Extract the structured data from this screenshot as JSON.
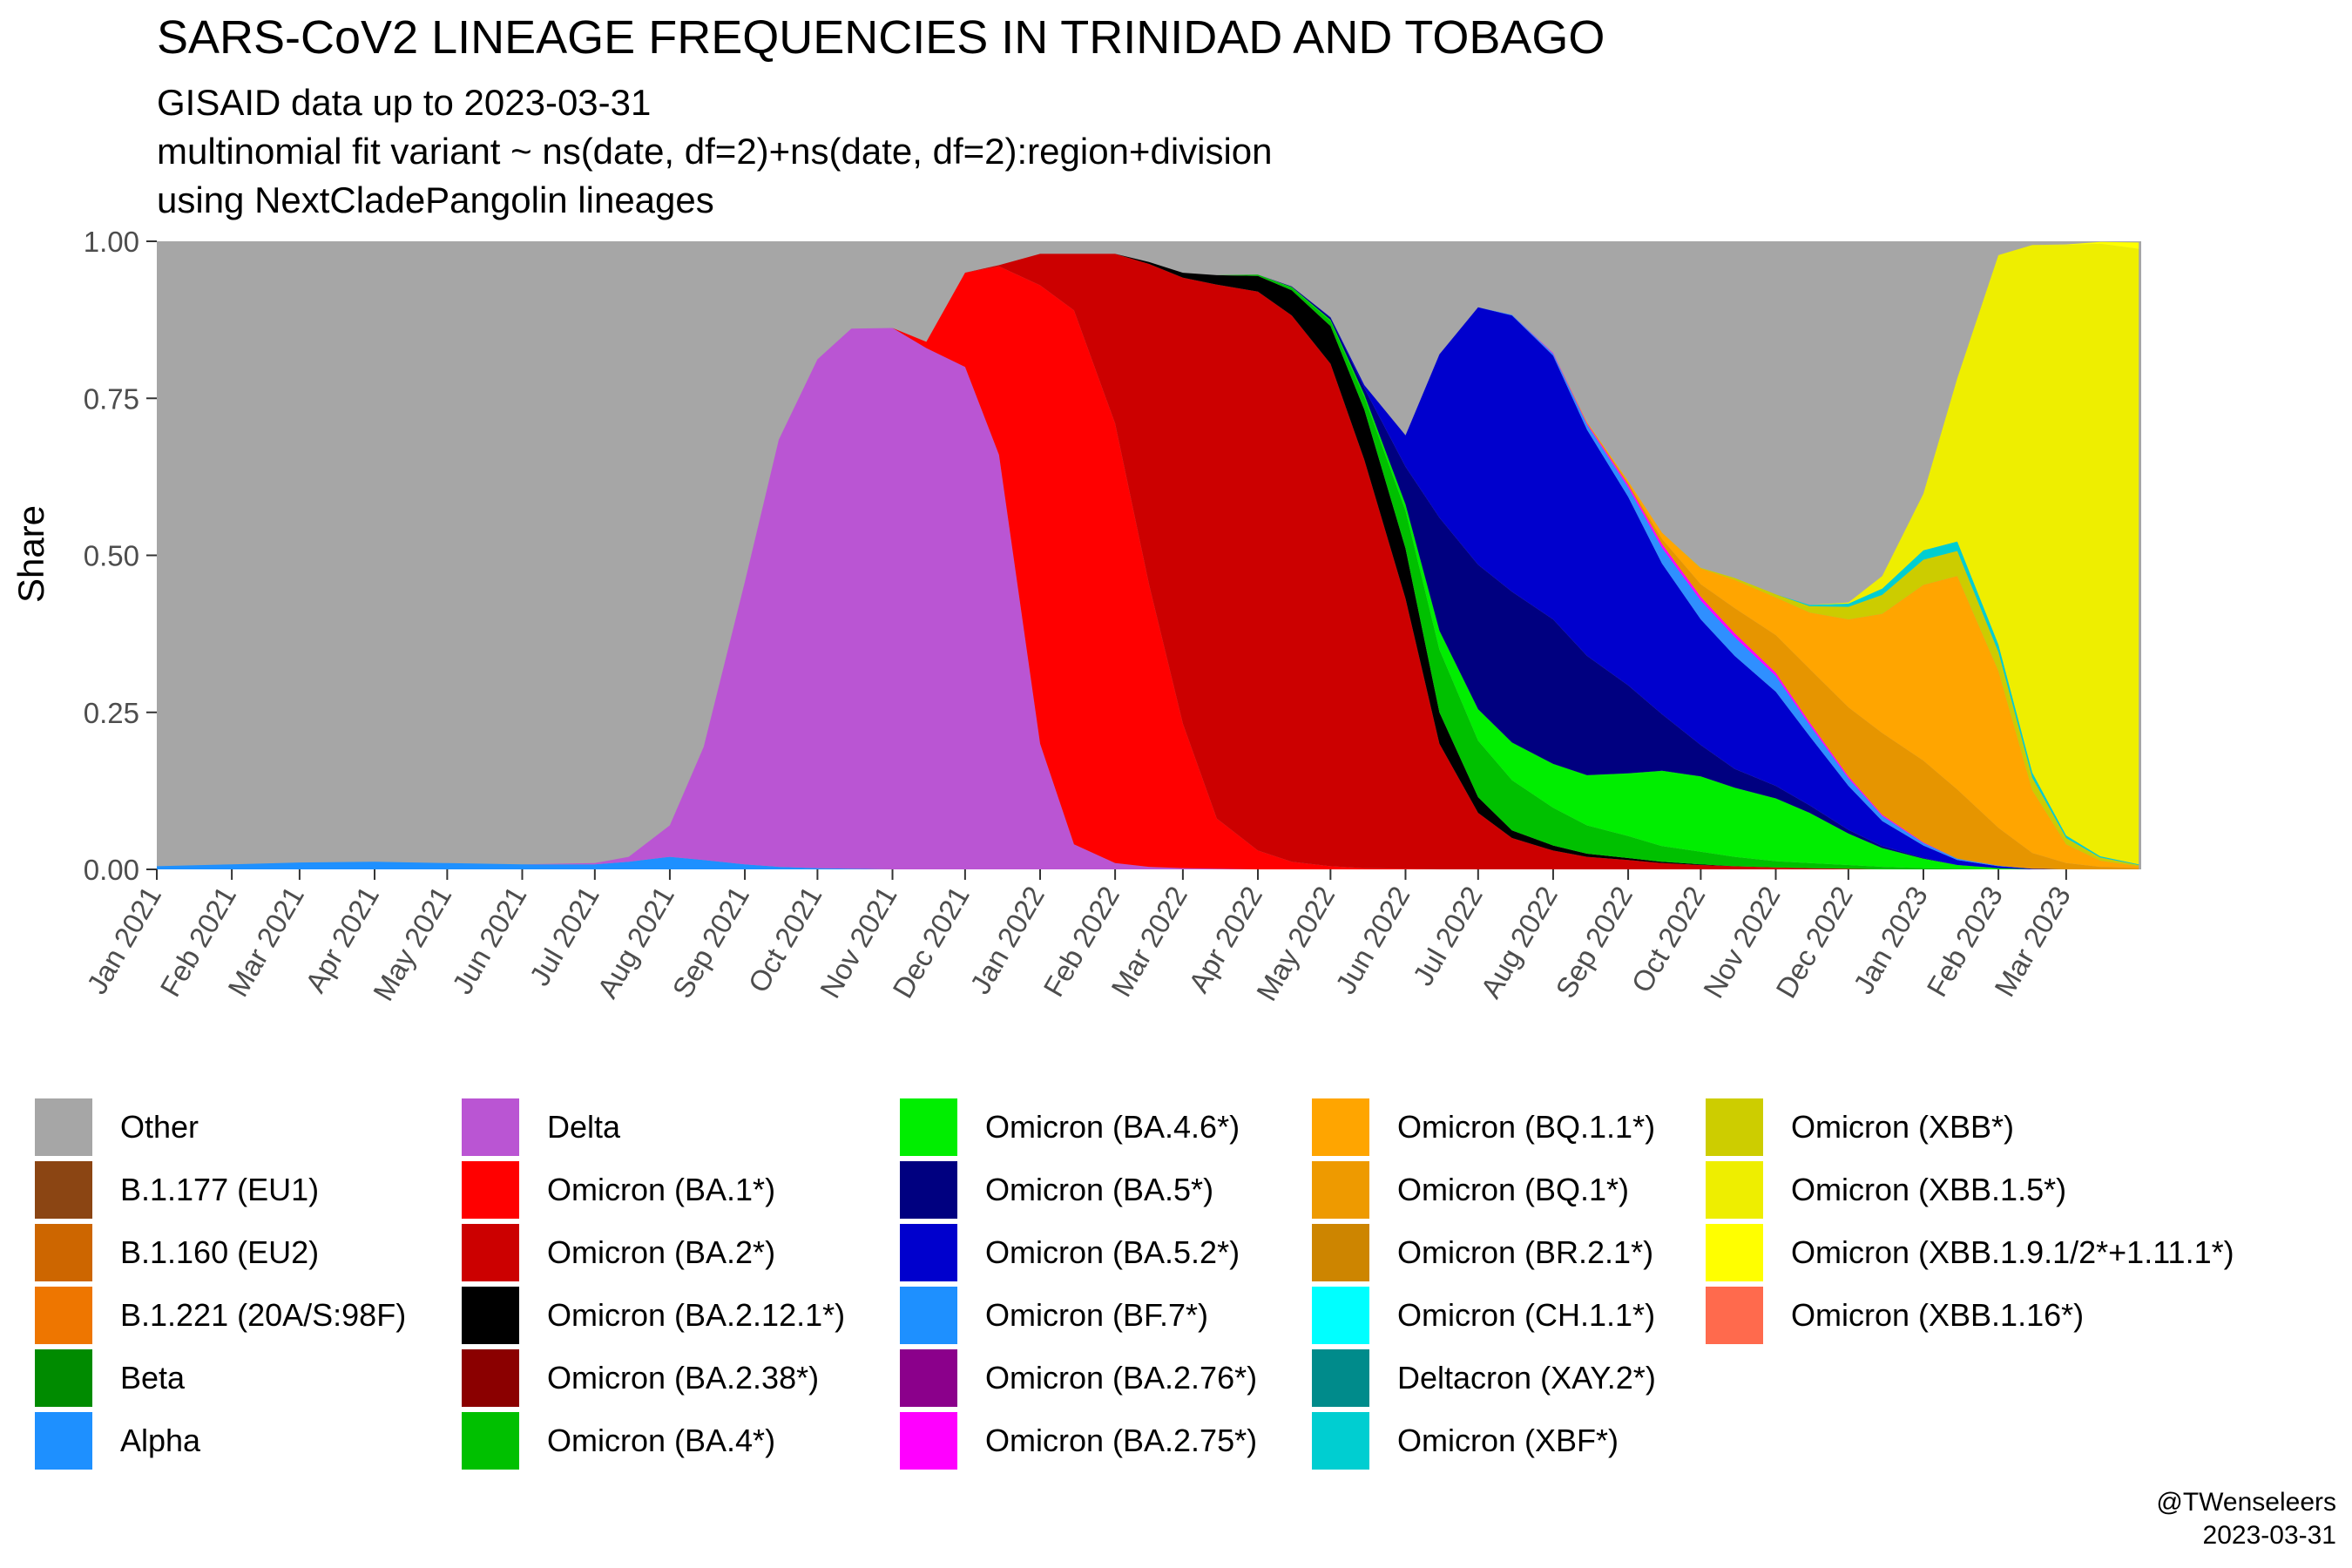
{
  "title": "SARS-CoV2 LINEAGE FREQUENCIES IN TRINIDAD AND TOBAGO",
  "subtitle_lines": [
    "GISAID data up to 2023-03-31",
    "multinomial fit variant ~ ns(date, df=2)+ns(date, df=2):region+division",
    "using NextCladePangolin lineages"
  ],
  "credit": {
    "author": "@TWenseleers",
    "date": "2023-03-31"
  },
  "chart_data": {
    "type": "area",
    "stacked": true,
    "title": "SARS-CoV2 LINEAGE FREQUENCIES IN TRINIDAD AND TOBAGO",
    "xlabel": "",
    "ylabel": "Share",
    "xlim": [
      "2021-01-01",
      "2023-04-01"
    ],
    "ylim": [
      0,
      1
    ],
    "y_ticks": [
      "0.00",
      "0.25",
      "0.50",
      "0.75",
      "1.00"
    ],
    "x_ticks": [
      "Jan 2021",
      "Feb 2021",
      "Mar 2021",
      "Apr 2021",
      "May 2021",
      "Jun 2021",
      "Jul 2021",
      "Aug 2021",
      "Sep 2021",
      "Oct 2021",
      "Nov 2021",
      "Dec 2021",
      "Jan 2022",
      "Feb 2022",
      "Mar 2022",
      "Apr 2022",
      "May 2022",
      "Jun 2022",
      "Jul 2022",
      "Aug 2022",
      "Sep 2022",
      "Oct 2022",
      "Nov 2022",
      "Dec 2022",
      "Jan 2023",
      "Feb 2023",
      "Mar 2023"
    ],
    "x_tick_dates": [
      "2021-01-01",
      "2021-02-01",
      "2021-03-01",
      "2021-04-01",
      "2021-05-01",
      "2021-06-01",
      "2021-07-01",
      "2021-08-01",
      "2021-09-01",
      "2021-10-01",
      "2021-11-01",
      "2021-12-01",
      "2022-01-01",
      "2022-02-01",
      "2022-03-01",
      "2022-04-01",
      "2022-05-01",
      "2022-06-01",
      "2022-07-01",
      "2022-08-01",
      "2022-09-01",
      "2022-10-01",
      "2022-11-01",
      "2022-12-01",
      "2023-01-01",
      "2023-02-01",
      "2023-03-01"
    ],
    "grid": false,
    "legend_position": "bottom",
    "x": [
      "2021-01-01",
      "2021-02-01",
      "2021-03-01",
      "2021-04-01",
      "2021-05-01",
      "2021-06-01",
      "2021-07-01",
      "2021-07-15",
      "2021-08-01",
      "2021-08-15",
      "2021-09-01",
      "2021-09-15",
      "2021-10-01",
      "2021-10-15",
      "2021-11-01",
      "2021-11-15",
      "2021-12-01",
      "2021-12-15",
      "2022-01-01",
      "2022-01-15",
      "2022-02-01",
      "2022-02-15",
      "2022-03-01",
      "2022-03-15",
      "2022-04-01",
      "2022-04-15",
      "2022-05-01",
      "2022-05-15",
      "2022-06-01",
      "2022-06-15",
      "2022-07-01",
      "2022-07-15",
      "2022-08-01",
      "2022-08-15",
      "2022-09-01",
      "2022-09-15",
      "2022-10-01",
      "2022-10-15",
      "2022-11-01",
      "2022-11-15",
      "2022-12-01",
      "2022-12-15",
      "2023-01-01",
      "2023-01-15",
      "2023-02-01",
      "2023-02-15",
      "2023-03-01",
      "2023-03-15",
      "2023-03-31"
    ],
    "series": [
      {
        "name": "Alpha",
        "color": "#1E90FF",
        "values": [
          0.005,
          0.008,
          0.011,
          0.012,
          0.01,
          0.008,
          0.008,
          0.012,
          0.02,
          0.015,
          0.008,
          0.004,
          0.002,
          0.001,
          0,
          0,
          0,
          0,
          0,
          0,
          0,
          0,
          0,
          0,
          0,
          0,
          0,
          0,
          0,
          0,
          0,
          0,
          0,
          0,
          0,
          0,
          0,
          0,
          0,
          0,
          0,
          0,
          0,
          0,
          0,
          0,
          0,
          0,
          0
        ]
      },
      {
        "name": "Delta",
        "color": "#BA55D3",
        "values": [
          0,
          0,
          0,
          0,
          0,
          0,
          0.002,
          0.008,
          0.05,
          0.18,
          0.45,
          0.68,
          0.81,
          0.86,
          0.862,
          0.83,
          0.8,
          0.66,
          0.2,
          0.04,
          0.01,
          0.004,
          0.002,
          0.001,
          0,
          0,
          0,
          0,
          0,
          0,
          0,
          0,
          0,
          0,
          0,
          0,
          0,
          0,
          0,
          0,
          0,
          0,
          0,
          0,
          0,
          0,
          0,
          0,
          0
        ]
      },
      {
        "name": "Omicron (BA.1*)",
        "color": "#FF0000",
        "values": [
          0,
          0,
          0,
          0,
          0,
          0,
          0,
          0,
          0,
          0,
          0,
          0,
          0,
          0,
          0,
          0.01,
          0.15,
          0.3,
          0.73,
          0.85,
          0.7,
          0.45,
          0.23,
          0.08,
          0.03,
          0.012,
          0.005,
          0.002,
          0.001,
          0,
          0,
          0,
          0,
          0,
          0,
          0,
          0,
          0,
          0,
          0,
          0,
          0,
          0,
          0,
          0,
          0,
          0,
          0,
          0
        ]
      },
      {
        "name": "Omicron (BA.2*)",
        "color": "#CC0000",
        "values": [
          0,
          0,
          0,
          0,
          0,
          0,
          0,
          0,
          0,
          0,
          0,
          0,
          0,
          0,
          0,
          0,
          0,
          0.002,
          0.05,
          0.09,
          0.27,
          0.51,
          0.71,
          0.85,
          0.89,
          0.87,
          0.8,
          0.65,
          0.43,
          0.2,
          0.09,
          0.05,
          0.03,
          0.02,
          0.015,
          0.01,
          0.007,
          0.005,
          0.003,
          0.002,
          0.001,
          0,
          0,
          0,
          0,
          0,
          0,
          0,
          0
        ]
      },
      {
        "name": "Omicron (BA.2.12.1*)",
        "color": "#000000",
        "values": [
          0,
          0,
          0,
          0,
          0,
          0,
          0,
          0,
          0,
          0,
          0,
          0,
          0,
          0,
          0,
          0,
          0,
          0,
          0,
          0,
          0,
          0.003,
          0.008,
          0.015,
          0.025,
          0.04,
          0.06,
          0.08,
          0.08,
          0.05,
          0.025,
          0.012,
          0.008,
          0.005,
          0.003,
          0.002,
          0.001,
          0,
          0,
          0,
          0,
          0,
          0,
          0,
          0,
          0,
          0,
          0,
          0
        ]
      },
      {
        "name": "Omicron (BA.4*)",
        "color": "#00C000",
        "values": [
          0,
          0,
          0,
          0,
          0,
          0,
          0,
          0,
          0,
          0,
          0,
          0,
          0,
          0,
          0,
          0,
          0,
          0,
          0,
          0,
          0,
          0,
          0,
          0,
          0.002,
          0.004,
          0.008,
          0.02,
          0.06,
          0.1,
          0.09,
          0.08,
          0.06,
          0.045,
          0.035,
          0.025,
          0.02,
          0.015,
          0.01,
          0.008,
          0.006,
          0.004,
          0.002,
          0.001,
          0,
          0,
          0,
          0,
          0
        ]
      },
      {
        "name": "Omicron (BA.4.6*)",
        "color": "#00EE00",
        "values": [
          0,
          0,
          0,
          0,
          0,
          0,
          0,
          0,
          0,
          0,
          0,
          0,
          0,
          0,
          0,
          0,
          0,
          0,
          0,
          0,
          0,
          0,
          0,
          0,
          0,
          0.001,
          0.002,
          0.004,
          0.01,
          0.03,
          0.05,
          0.06,
          0.07,
          0.08,
          0.1,
          0.12,
          0.12,
          0.11,
          0.1,
          0.08,
          0.05,
          0.03,
          0.015,
          0.006,
          0.002,
          0,
          0,
          0,
          0
        ]
      },
      {
        "name": "Omicron (BA.5*)",
        "color": "#000080",
        "values": [
          0,
          0,
          0,
          0,
          0,
          0,
          0,
          0,
          0,
          0,
          0,
          0,
          0,
          0,
          0,
          0,
          0,
          0,
          0,
          0,
          0,
          0,
          0,
          0,
          0,
          0.001,
          0.003,
          0.01,
          0.06,
          0.18,
          0.23,
          0.24,
          0.23,
          0.19,
          0.14,
          0.09,
          0.05,
          0.03,
          0.02,
          0.012,
          0.006,
          0.003,
          0.001,
          0,
          0,
          0,
          0,
          0,
          0
        ]
      },
      {
        "name": "Omicron (BA.5.2*)",
        "color": "#0000CD",
        "values": [
          0,
          0,
          0,
          0,
          0,
          0,
          0,
          0,
          0,
          0,
          0,
          0,
          0,
          0,
          0,
          0,
          0,
          0,
          0,
          0,
          0,
          0,
          0,
          0,
          0,
          0,
          0.001,
          0.005,
          0.05,
          0.26,
          0.41,
          0.44,
          0.42,
          0.36,
          0.3,
          0.24,
          0.2,
          0.18,
          0.15,
          0.11,
          0.07,
          0.04,
          0.02,
          0.008,
          0.003,
          0.001,
          0,
          0,
          0
        ]
      },
      {
        "name": "Omicron (BF.7*)",
        "color": "#2F8FFF",
        "values": [
          0,
          0,
          0,
          0,
          0,
          0,
          0,
          0,
          0,
          0,
          0,
          0,
          0,
          0,
          0,
          0,
          0,
          0,
          0,
          0,
          0,
          0,
          0,
          0,
          0,
          0,
          0,
          0,
          0,
          0,
          0,
          0.001,
          0.003,
          0.008,
          0.015,
          0.025,
          0.03,
          0.03,
          0.025,
          0.018,
          0.012,
          0.008,
          0.004,
          0.002,
          0.001,
          0,
          0,
          0,
          0
        ]
      },
      {
        "name": "Omicron (BA.2.75*)",
        "color": "#FF00FF",
        "values": [
          0,
          0,
          0,
          0,
          0,
          0,
          0,
          0,
          0,
          0,
          0,
          0,
          0,
          0,
          0,
          0,
          0,
          0,
          0,
          0,
          0,
          0,
          0,
          0,
          0,
          0,
          0,
          0,
          0,
          0,
          0,
          0,
          0.001,
          0.002,
          0.004,
          0.006,
          0.006,
          0.006,
          0.005,
          0.004,
          0.003,
          0.002,
          0.001,
          0,
          0,
          0,
          0,
          0,
          0
        ]
      },
      {
        "name": "Omicron (BQ.1*)",
        "color": "#E69500",
        "values": [
          0,
          0,
          0,
          0,
          0,
          0,
          0,
          0,
          0,
          0,
          0,
          0,
          0,
          0,
          0,
          0,
          0,
          0,
          0,
          0,
          0,
          0,
          0,
          0,
          0,
          0,
          0,
          0,
          0,
          0,
          0,
          0,
          0,
          0.001,
          0.003,
          0.008,
          0.02,
          0.04,
          0.06,
          0.085,
          0.11,
          0.13,
          0.13,
          0.11,
          0.06,
          0.025,
          0.01,
          0.004,
          0.002
        ]
      },
      {
        "name": "Omicron (BQ.1.1*)",
        "color": "#FFA500",
        "values": [
          0,
          0,
          0,
          0,
          0,
          0,
          0,
          0,
          0,
          0,
          0,
          0,
          0,
          0,
          0,
          0,
          0,
          0,
          0,
          0,
          0,
          0,
          0,
          0,
          0,
          0,
          0,
          0,
          0,
          0,
          0,
          0,
          0,
          0.001,
          0.003,
          0.01,
          0.025,
          0.045,
          0.06,
          0.09,
          0.14,
          0.19,
          0.28,
          0.34,
          0.25,
          0.1,
          0.03,
          0.01,
          0.003
        ]
      },
      {
        "name": "Omicron (XBB*)",
        "color": "#CCCC00",
        "values": [
          0,
          0,
          0,
          0,
          0,
          0,
          0,
          0,
          0,
          0,
          0,
          0,
          0,
          0,
          0,
          0,
          0,
          0,
          0,
          0,
          0,
          0,
          0,
          0,
          0,
          0,
          0,
          0,
          0,
          0,
          0,
          0,
          0,
          0,
          0,
          0,
          0.001,
          0.003,
          0.005,
          0.01,
          0.02,
          0.03,
          0.04,
          0.04,
          0.03,
          0.02,
          0.01,
          0.005,
          0.002
        ]
      },
      {
        "name": "Omicron (XBF*)",
        "color": "#00CED1",
        "values": [
          0,
          0,
          0,
          0,
          0,
          0,
          0,
          0,
          0,
          0,
          0,
          0,
          0,
          0,
          0,
          0,
          0,
          0,
          0,
          0,
          0,
          0,
          0,
          0,
          0,
          0,
          0,
          0,
          0,
          0,
          0,
          0,
          0,
          0,
          0,
          0,
          0,
          0,
          0,
          0.002,
          0.005,
          0.01,
          0.015,
          0.015,
          0.012,
          0.008,
          0.004,
          0.002,
          0.001
        ]
      },
      {
        "name": "Omicron (XBB.1.5*)",
        "color": "#EEEE00",
        "values": [
          0,
          0,
          0,
          0,
          0,
          0,
          0,
          0,
          0,
          0,
          0,
          0,
          0,
          0,
          0,
          0,
          0,
          0,
          0,
          0,
          0,
          0,
          0,
          0,
          0,
          0,
          0,
          0,
          0,
          0,
          0,
          0,
          0,
          0,
          0,
          0,
          0,
          0,
          0,
          0,
          0.002,
          0.02,
          0.09,
          0.26,
          0.62,
          0.84,
          0.94,
          0.975,
          0.98
        ]
      },
      {
        "name": "Omicron (XBB.1.9.1/2*+1.11.1*)",
        "color": "#FFFF00",
        "values": [
          0,
          0,
          0,
          0,
          0,
          0,
          0,
          0,
          0,
          0,
          0,
          0,
          0,
          0,
          0,
          0,
          0,
          0,
          0,
          0,
          0,
          0,
          0,
          0,
          0,
          0,
          0,
          0,
          0,
          0,
          0,
          0,
          0,
          0,
          0,
          0,
          0,
          0,
          0,
          0,
          0,
          0,
          0,
          0,
          0,
          0,
          0.001,
          0.003,
          0.01
        ]
      }
    ],
    "other": {
      "name": "Other",
      "color": "#A6A6A6"
    },
    "legend": [
      {
        "name": "Other",
        "color": "#A6A6A6"
      },
      {
        "name": "B.1.177 (EU1)",
        "color": "#8B4513"
      },
      {
        "name": "B.1.160 (EU2)",
        "color": "#CD6600"
      },
      {
        "name": "B.1.221 (20A/S:98F)",
        "color": "#EE7600"
      },
      {
        "name": "Beta",
        "color": "#008B00"
      },
      {
        "name": "Alpha",
        "color": "#1E90FF"
      },
      {
        "name": "Delta",
        "color": "#BA55D3"
      },
      {
        "name": "Omicron (BA.1*)",
        "color": "#FF0000"
      },
      {
        "name": "Omicron (BA.2*)",
        "color": "#CC0000"
      },
      {
        "name": "Omicron (BA.2.12.1*)",
        "color": "#000000"
      },
      {
        "name": "Omicron (BA.2.38*)",
        "color": "#8B0000"
      },
      {
        "name": "Omicron (BA.4*)",
        "color": "#00C000"
      },
      {
        "name": "Omicron (BA.4.6*)",
        "color": "#00EE00"
      },
      {
        "name": "Omicron (BA.5*)",
        "color": "#000080"
      },
      {
        "name": "Omicron (BA.5.2*)",
        "color": "#0000CD"
      },
      {
        "name": "Omicron (BF.7*)",
        "color": "#1E90FF"
      },
      {
        "name": "Omicron (BA.2.76*)",
        "color": "#8B008B"
      },
      {
        "name": "Omicron (BA.2.75*)",
        "color": "#FF00FF"
      },
      {
        "name": "Omicron (BQ.1.1*)",
        "color": "#FFA500"
      },
      {
        "name": "Omicron (BQ.1*)",
        "color": "#EE9A00"
      },
      {
        "name": "Omicron (BR.2.1*)",
        "color": "#CD8500"
      },
      {
        "name": "Omicron (CH.1.1*)",
        "color": "#00FFFF"
      },
      {
        "name": "Deltacron (XAY.2*)",
        "color": "#008B8B"
      },
      {
        "name": "Omicron (XBF*)",
        "color": "#00CED1"
      },
      {
        "name": "Omicron (XBB*)",
        "color": "#CDCD00"
      },
      {
        "name": "Omicron (XBB.1.5*)",
        "color": "#EEEE00"
      },
      {
        "name": "Omicron (XBB.1.9.1/2*+1.11.1*)",
        "color": "#FFFF00"
      },
      {
        "name": "Omicron (XBB.1.16*)",
        "color": "#FF6A4D"
      }
    ]
  }
}
